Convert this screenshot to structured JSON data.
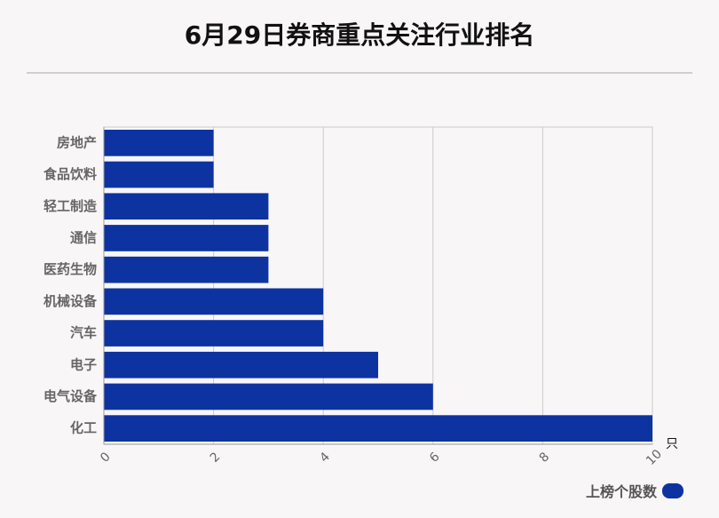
{
  "title": "6月29日券商重点关注行业排名",
  "chart_data": {
    "type": "bar",
    "orientation": "horizontal",
    "categories": [
      "房地产",
      "食品饮料",
      "轻工制造",
      "通信",
      "医药生物",
      "机械设备",
      "汽车",
      "电子",
      "电气设备",
      "化工"
    ],
    "series": [
      {
        "name": "上榜个股数",
        "values": [
          2,
          2,
          3,
          3,
          3,
          4,
          4,
          5,
          6,
          10
        ]
      }
    ],
    "xlim": [
      0,
      10
    ],
    "xticks": [
      "0",
      "2",
      "4",
      "6",
      "8",
      "10"
    ],
    "x_unit": "只",
    "grid": true,
    "legend": "bottom-right",
    "color": "#0d33a0"
  }
}
